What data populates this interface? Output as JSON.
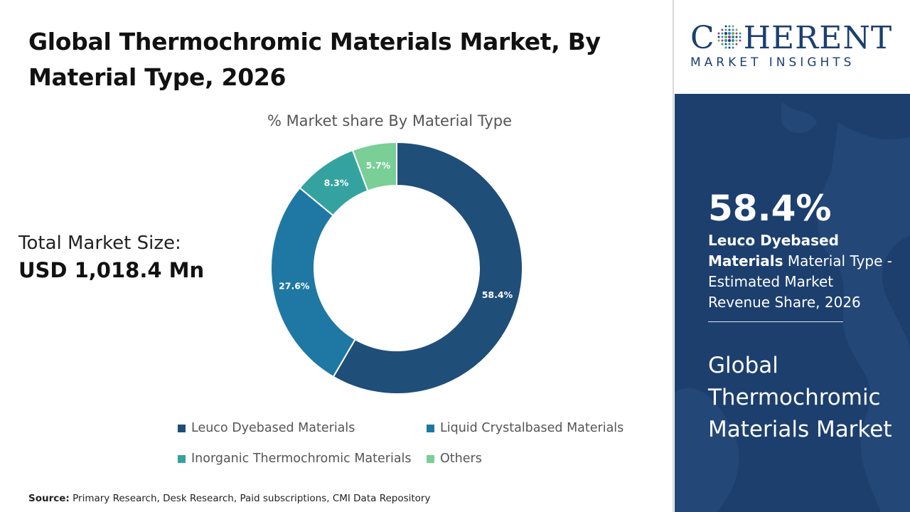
{
  "header": {
    "title": "Global Thermochromic Materials Market, By Material Type, 2026"
  },
  "total_market": {
    "label": "Total Market Size:",
    "value": "USD 1,018.4 Mn"
  },
  "chart_data": {
    "type": "pie",
    "style": "donut",
    "title": "% Market share By Material Type",
    "categories": [
      "Leuco Dyebased Materials",
      "Liquid Crystalbased Materials",
      "Inorganic Thermochromic Materials",
      "Others"
    ],
    "values": [
      58.4,
      27.6,
      8.3,
      5.7
    ],
    "data_labels": [
      "58.4%",
      "27.6%",
      "8.3%",
      "5.7%"
    ],
    "colors": [
      "#1f4e79",
      "#1f78a4",
      "#34a3a0",
      "#79cf96"
    ],
    "legend_position": "bottom"
  },
  "source": {
    "label": "Source:",
    "text": "Primary Research, Desk Research, Paid subscriptions, CMI Data Repository"
  },
  "logo": {
    "brand_prefix": "C",
    "brand_suffix": "HERENT",
    "tagline": "MARKET INSIGHTS"
  },
  "highlight": {
    "percentage": "58.4%",
    "segment": "Leuco Dyebased Materials",
    "description": "Material Type - Estimated Market Revenue Share, 2026",
    "market_name": "Global Thermochromic Materials Market"
  },
  "colors": {
    "panel_bg": "#1c3f6e",
    "brand": "#1c3f6e"
  }
}
